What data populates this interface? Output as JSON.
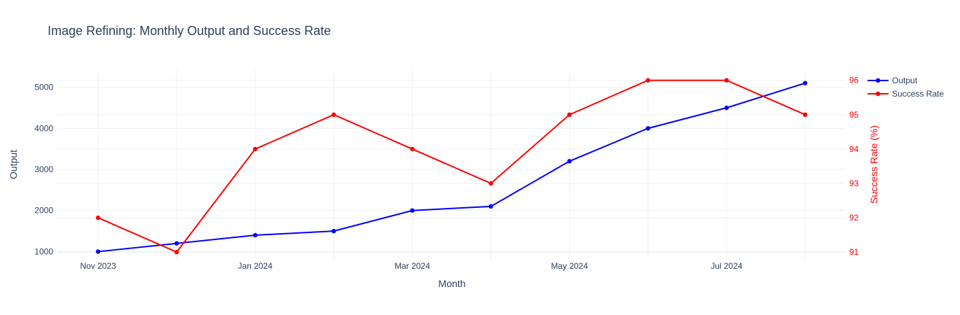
{
  "chart_data": {
    "type": "line",
    "title": "Image Refining: Monthly Output and Success Rate",
    "xlabel": "Month",
    "ylabel": "Output",
    "y2label": "Success Rate (%)",
    "x": [
      "2023-11",
      "2023-12",
      "2024-01",
      "2024-02",
      "2024-03",
      "2024-04",
      "2024-05",
      "2024-06",
      "2024-07",
      "2024-08"
    ],
    "x_ticks": [
      "Nov 2023",
      "Jan 2024",
      "Mar 2024",
      "May 2024",
      "Jul 2024"
    ],
    "x_tick_months": [
      "2023-11",
      "2024-01",
      "2024-03",
      "2024-05",
      "2024-07"
    ],
    "y_ticks": [
      1000,
      2000,
      3000,
      4000,
      5000
    ],
    "y2_ticks": [
      91,
      92,
      93,
      94,
      95,
      96
    ],
    "ylim": [
      820,
      5420
    ],
    "y2lim": [
      90.8,
      96.3
    ],
    "grid": true,
    "legend_position": "top-right",
    "series": [
      {
        "name": "Output",
        "axis": "y",
        "color": "#0000ff",
        "values": [
          1000,
          1200,
          1400,
          1500,
          2000,
          2100,
          3200,
          4000,
          4500,
          5100
        ]
      },
      {
        "name": "Success Rate",
        "axis": "y2",
        "color": "#ff0000",
        "values": [
          92,
          91,
          94,
          95,
          94,
          93,
          95,
          96,
          96,
          95
        ]
      }
    ]
  }
}
